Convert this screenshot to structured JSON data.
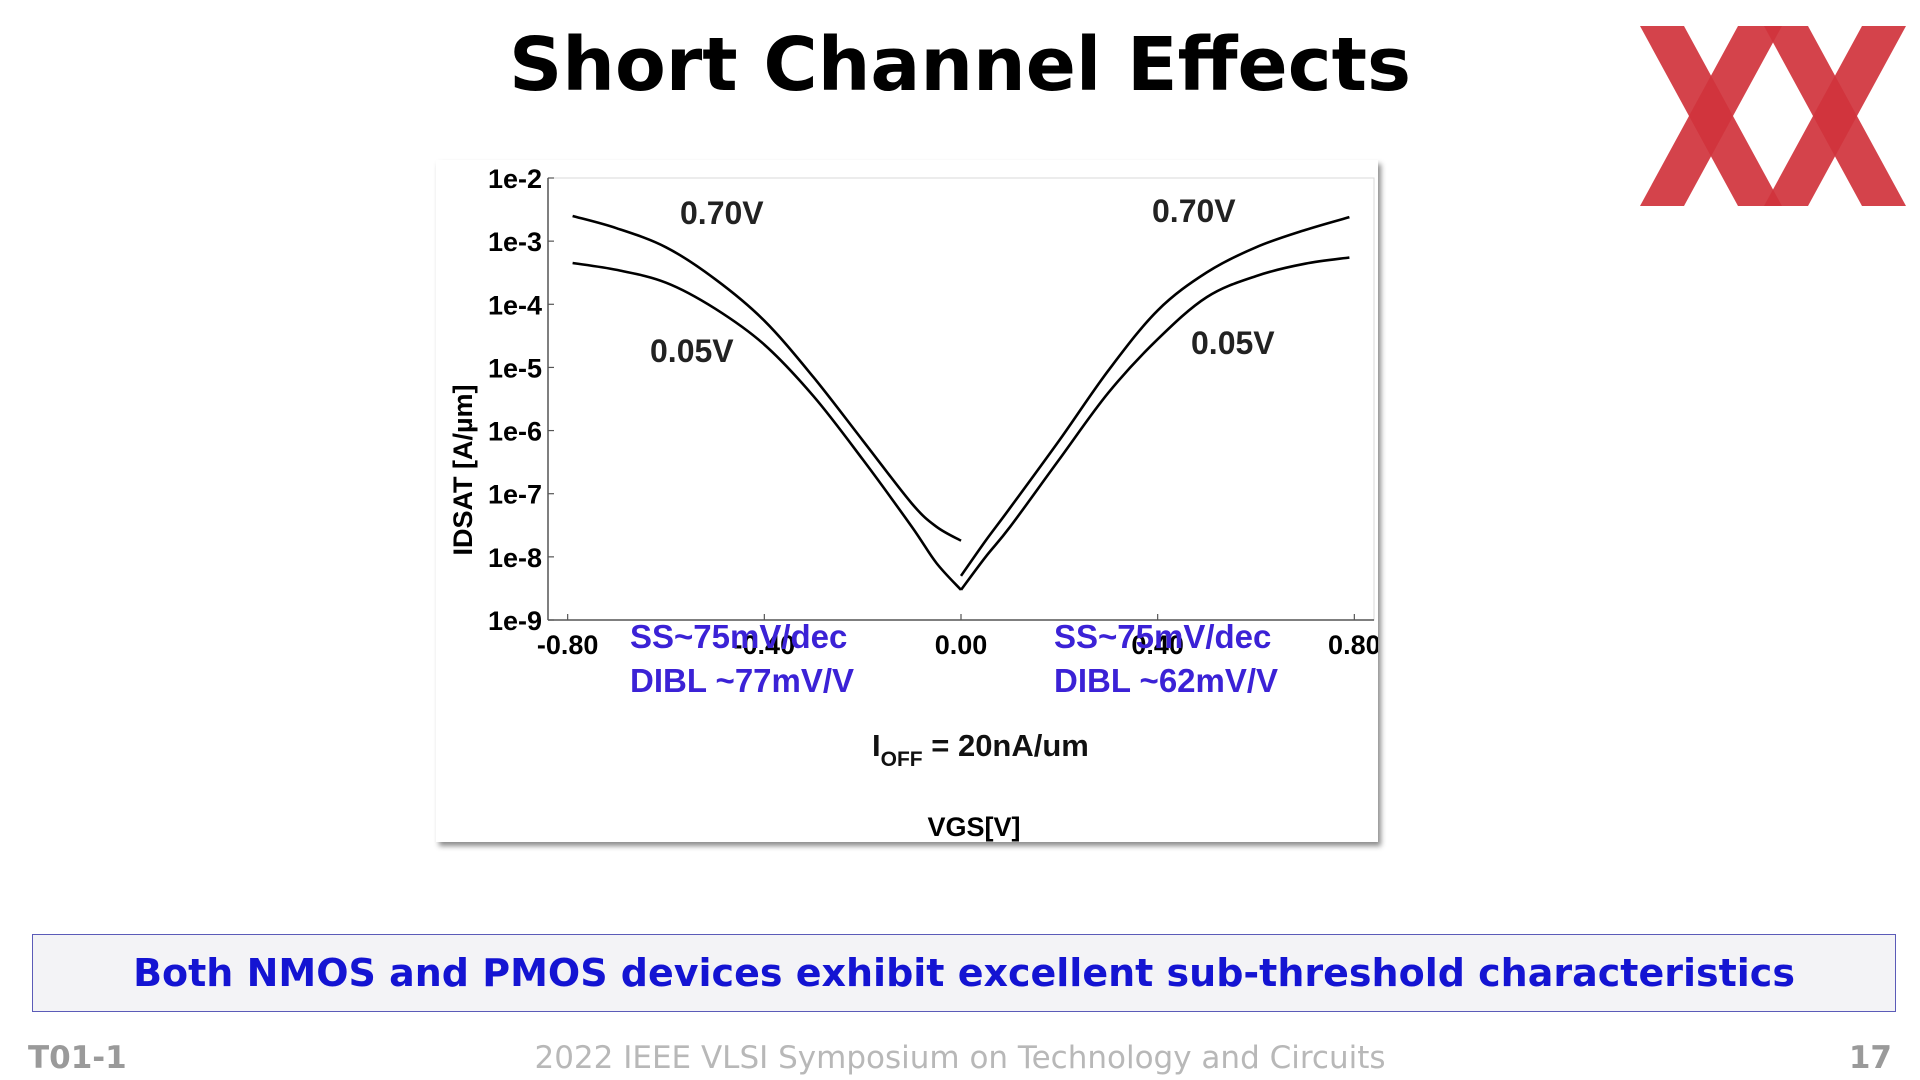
{
  "slide": {
    "title": "Short Channel Effects",
    "message": "Both NMOS and PMOS devices exhibit excellent sub-threshold characteristics",
    "footer_left": "T01-1",
    "footer_center": "2022 IEEE VLSI Symposium on Technology and Circuits",
    "footer_right": "17",
    "logo_color": "#d0333c",
    "message_color": "#1414d2"
  },
  "chart_data": {
    "type": "line",
    "title": "",
    "xlabel": "VGS[V]",
    "ylabel": "IDSAT [A/µm]",
    "xlim": [
      -0.84,
      0.84
    ],
    "ylim": [
      1e-09,
      0.01
    ],
    "log_y": true,
    "x_ticks": [
      -0.8,
      -0.4,
      0.0,
      0.4,
      0.8
    ],
    "x_tick_labels": [
      "-0.80",
      "-0.40",
      "0.00",
      "0.40",
      "0.80"
    ],
    "y_ticks": [
      0.01,
      0.001,
      0.0001,
      1e-05,
      1e-06,
      1e-07,
      1e-08,
      1e-09
    ],
    "y_tick_labels": [
      "1e-2",
      "1e-3",
      "1e-4",
      "1e-5",
      "1e-6",
      "1e-7",
      "1e-8",
      "1e-9"
    ],
    "grid": false,
    "curve_color": "#000000",
    "series": [
      {
        "name": "PMOS 0.70V",
        "x": [
          -0.79,
          -0.7,
          -0.6,
          -0.5,
          -0.4,
          -0.3,
          -0.2,
          -0.1,
          -0.05,
          0.0
        ],
        "y": [
          0.0025,
          0.0016,
          0.0008,
          0.00025,
          5.5e-05,
          7e-06,
          7e-07,
          7e-08,
          3e-08,
          1.8e-08
        ]
      },
      {
        "name": "PMOS 0.05V",
        "x": [
          -0.79,
          -0.7,
          -0.6,
          -0.5,
          -0.4,
          -0.3,
          -0.2,
          -0.1,
          -0.05,
          0.0
        ],
        "y": [
          0.00045,
          0.00035,
          0.00022,
          8.5e-05,
          2.3e-05,
          3.5e-06,
          3.5e-07,
          3e-08,
          8e-09,
          3e-09
        ]
      },
      {
        "name": "NMOS 0.70V",
        "x": [
          0.0,
          0.05,
          0.1,
          0.2,
          0.3,
          0.4,
          0.5,
          0.6,
          0.7,
          0.79
        ],
        "y": [
          5e-09,
          1.8e-08,
          6e-08,
          7e-07,
          9e-06,
          8e-05,
          0.00032,
          0.0008,
          0.0015,
          0.0024
        ]
      },
      {
        "name": "NMOS 0.05V",
        "x": [
          0.0,
          0.05,
          0.1,
          0.2,
          0.3,
          0.4,
          0.5,
          0.6,
          0.7,
          0.79
        ],
        "y": [
          3e-09,
          1e-08,
          3e-08,
          3.5e-07,
          4e-06,
          2.8e-05,
          0.00013,
          0.00028,
          0.00044,
          0.00055
        ]
      }
    ],
    "curve_labels": {
      "left_high": "0.70V",
      "left_low": "0.05V",
      "right_high": "0.70V",
      "right_low": "0.05V"
    },
    "annotations": {
      "left_ss": "SS~75mV/dec",
      "left_dibl": "DIBL ~77mV/V",
      "right_ss": "SS~75mV/dec",
      "right_dibl": "DIBL ~62mV/V",
      "ioff_main": "I",
      "ioff_sub": "OFF",
      "ioff_value": " = 20nA/um",
      "color": "#3b22d6"
    }
  }
}
